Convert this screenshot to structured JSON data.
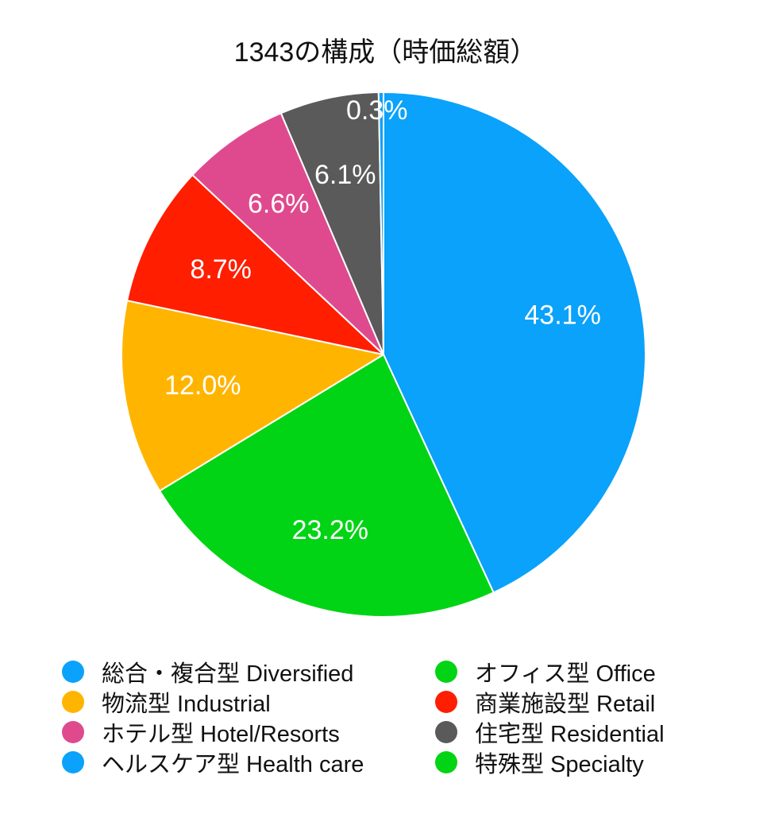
{
  "chart_data": {
    "type": "pie",
    "title": "1343の構成（時価総額）",
    "slices": [
      {
        "name": "総合・複合型 Diversified",
        "value": 43.1,
        "label": "43.1%",
        "color": "#0aa2fa"
      },
      {
        "name": "オフィス型 Office",
        "value": 23.2,
        "label": "23.2%",
        "color": "#01d414"
      },
      {
        "name": "物流型 Industrial",
        "value": 12.0,
        "label": "12.0%",
        "color": "#ffb500"
      },
      {
        "name": "商業施設型 Retail",
        "value": 8.7,
        "label": "8.7%",
        "color": "#ff1e00"
      },
      {
        "name": "ホテル型 Hotel/Resorts",
        "value": 6.6,
        "label": "6.6%",
        "color": "#df4a8e"
      },
      {
        "name": "住宅型 Residential",
        "value": 6.1,
        "label": "6.1%",
        "color": "#5a5a5a"
      },
      {
        "name": "ヘルスケア型 Health care",
        "value": 0.3,
        "label": "0.3%",
        "color": "#0aa2fa"
      },
      {
        "name": "特殊型 Specialty",
        "value": 0.0,
        "label": "",
        "color": "#01d414"
      }
    ],
    "legend": [
      {
        "label": "総合・複合型 Diversified",
        "color": "#0aa2fa"
      },
      {
        "label": "オフィス型 Office",
        "color": "#01d414"
      },
      {
        "label": "物流型 Industrial",
        "color": "#ffb500"
      },
      {
        "label": "商業施設型 Retail",
        "color": "#ff1e00"
      },
      {
        "label": "ホテル型 Hotel/Resorts",
        "color": "#df4a8e"
      },
      {
        "label": "住宅型 Residential",
        "color": "#5a5a5a"
      },
      {
        "label": "ヘルスケア型 Health care",
        "color": "#0aa2fa"
      },
      {
        "label": "特殊型 Specialty",
        "color": "#01d414"
      }
    ],
    "legend_position": "bottom"
  }
}
